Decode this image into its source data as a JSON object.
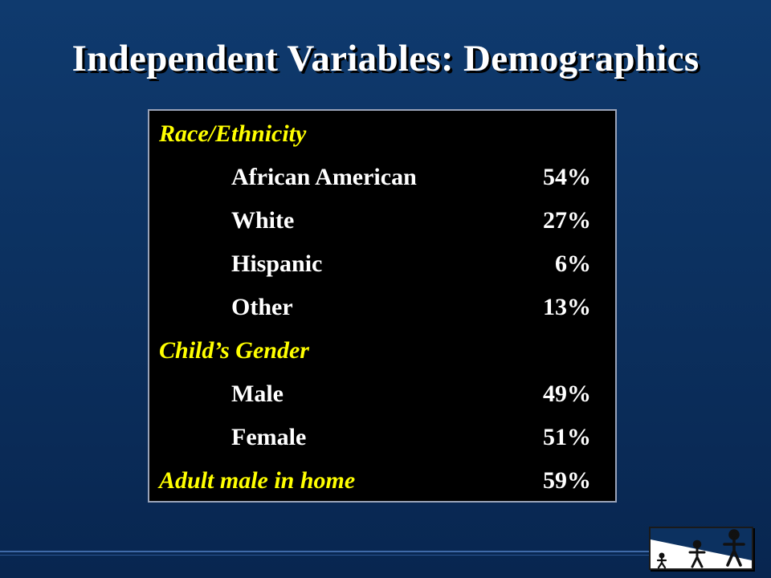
{
  "slide": {
    "title": "Independent Variables: Demographics"
  },
  "table": {
    "rows": [
      {
        "type": "heading",
        "label": "Race/Ethnicity",
        "value": ""
      },
      {
        "type": "item",
        "label": "African American",
        "value": "54%"
      },
      {
        "type": "item",
        "label": "White",
        "value": "27%"
      },
      {
        "type": "item",
        "label": "Hispanic",
        "value": "6%"
      },
      {
        "type": "item",
        "label": "Other",
        "value": "13%"
      },
      {
        "type": "heading",
        "label": "Child’s Gender",
        "value": ""
      },
      {
        "type": "item",
        "label": "Male",
        "value": "49%"
      },
      {
        "type": "item",
        "label": "Female",
        "value": "51%"
      },
      {
        "type": "heading",
        "label": "Adult male in home",
        "value": "59%"
      }
    ]
  },
  "colors": {
    "background": "#0c3160",
    "heading": "#ffff00",
    "text": "#ffffff",
    "box": "#000000"
  },
  "logo": {
    "icon": "three-figures-logo-icon"
  }
}
